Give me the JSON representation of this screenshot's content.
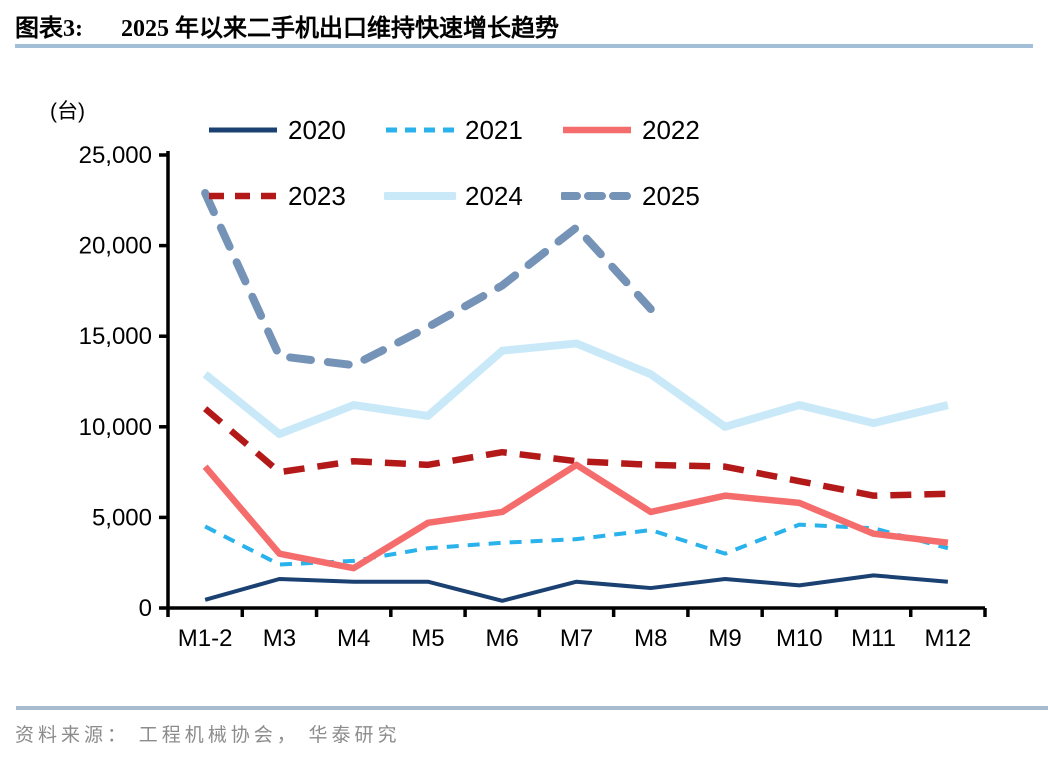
{
  "header": {
    "tag": "图表3:",
    "title": "2025 年以来二手机出口维持快速增长趋势"
  },
  "footer": {
    "source": "资料来源： 工程机械协会， 华泰研究"
  },
  "chart_data": {
    "type": "line",
    "unit_label": "(台)",
    "categories": [
      "M1-2",
      "M3",
      "M4",
      "M5",
      "M6",
      "M7",
      "M8",
      "M9",
      "M10",
      "M11",
      "M12"
    ],
    "ylim": [
      0,
      25000
    ],
    "yticks": [
      0,
      5000,
      10000,
      15000,
      20000,
      25000
    ],
    "grid": false,
    "legend_position": "top",
    "series": [
      {
        "name": "2020",
        "color": "#1B4172",
        "dash": "solid",
        "width": 4,
        "values": [
          450,
          1600,
          1450,
          1450,
          400,
          1450,
          1100,
          1600,
          1250,
          1800,
          1450
        ]
      },
      {
        "name": "2021",
        "color": "#29B2EC",
        "dash": "dash",
        "width": 4,
        "values": [
          4500,
          2400,
          2600,
          3300,
          3600,
          3800,
          4300,
          3000,
          4600,
          4400,
          3300
        ]
      },
      {
        "name": "2022",
        "color": "#F56C6C",
        "dash": "solid",
        "width": 6.5,
        "values": [
          7800,
          3000,
          2200,
          4700,
          5300,
          7900,
          5300,
          6200,
          5800,
          4100,
          3600
        ]
      },
      {
        "name": "2023",
        "color": "#B31919",
        "dash": "dash",
        "width": 6.5,
        "values": [
          11000,
          7500,
          8100,
          7900,
          8600,
          8100,
          7900,
          7800,
          7000,
          6200,
          6300
        ]
      },
      {
        "name": "2024",
        "color": "#C9E9F9",
        "dash": "solid",
        "width": 8,
        "values": [
          12900,
          9600,
          11200,
          10600,
          14200,
          14600,
          12900,
          10000,
          11200,
          10200,
          11200
        ]
      },
      {
        "name": "2025",
        "color": "#7592B7",
        "dash": "dash",
        "width": 8,
        "values": [
          22900,
          13900,
          13400,
          15500,
          17800,
          21000,
          16500,
          null,
          null,
          null,
          null
        ]
      }
    ]
  }
}
